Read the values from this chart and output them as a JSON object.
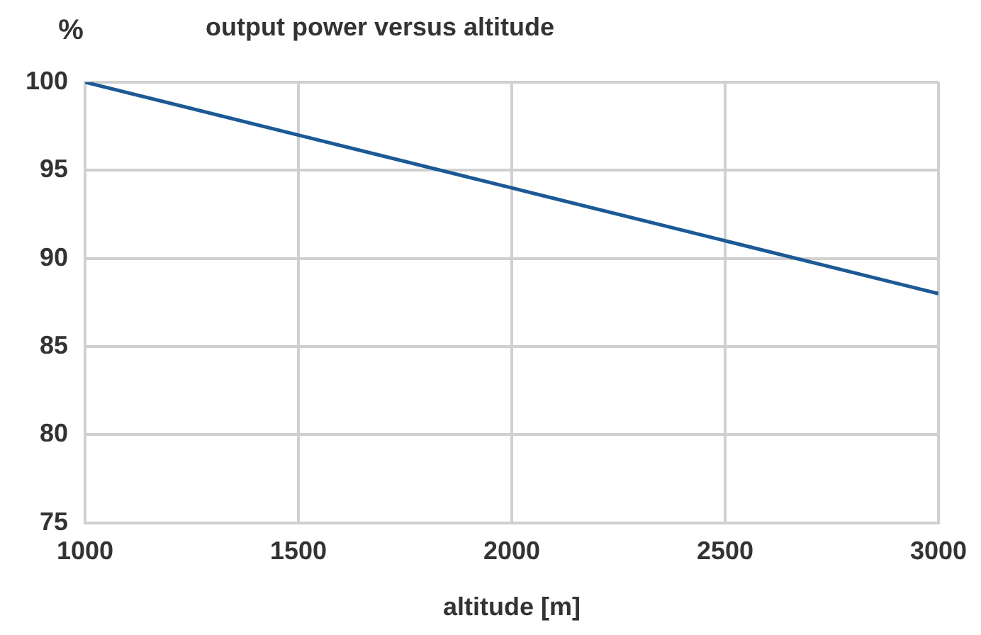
{
  "chart_data": {
    "type": "line",
    "title": "output power versus altitude",
    "xlabel": "altitude [m]",
    "ylabel": "%",
    "x": [
      1000,
      1500,
      2000,
      2500,
      3000
    ],
    "series": [
      {
        "color": "#1c5a96",
        "values": [
          100,
          97,
          94,
          91,
          88
        ]
      }
    ],
    "xlim": [
      1000,
      3000
    ],
    "xticks": [
      1000,
      1500,
      2000,
      2500,
      3000
    ],
    "ylim": [
      75,
      100
    ],
    "yticks": [
      75,
      80,
      85,
      90,
      95,
      100
    ],
    "grid": true,
    "legend": false,
    "marker": "none",
    "line_style": "solid"
  }
}
